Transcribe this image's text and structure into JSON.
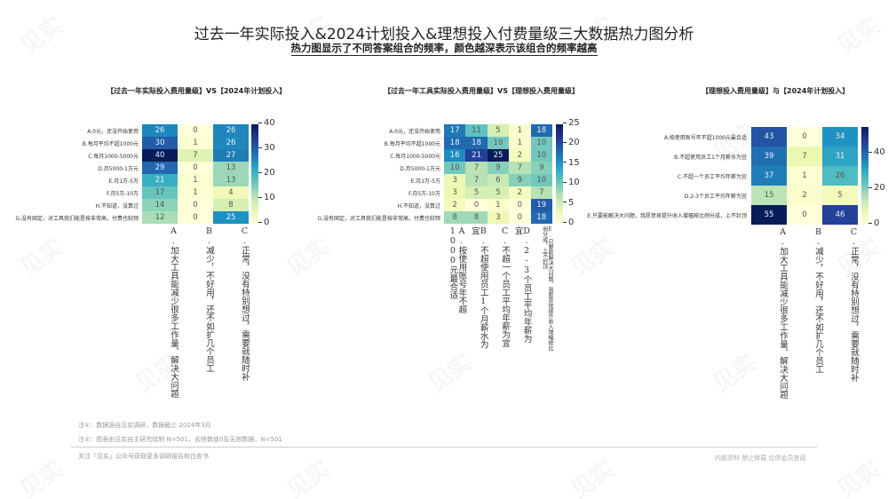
{
  "header": {
    "title": "过去一年实际投入&2024计划投入&理想投入付费量级三大数据热力图分析",
    "subtitle": "热力图显示了不同答案组合的频率，颜色越深表示该组合的频率越高"
  },
  "colors": {
    "colormap": "YlGnBu",
    "low": "#ffffd9",
    "high": "#081d58"
  },
  "chart_data": [
    {
      "type": "heatmap",
      "title": "【过去一年实际投入费用量级】VS【2024年计划投入】",
      "rows": [
        "A.0元，还没开始使用",
        "B.每月平均不超1000元",
        "C.每月1000-5000元",
        "D.月5000-1万元",
        "E.月1万-5万",
        "F.月5万-10万",
        "H.不知道，没算过",
        "G.没有固定，对工具我们能是按非常高，付费也较频"
      ],
      "columns": [
        "A.加大工具能减少很多工作量，解决大问题",
        "B.减少，不好用，还不如扩几个员工",
        "C.正常，没有特别想过，需要就随时补"
      ],
      "values": [
        [
          26,
          0,
          26
        ],
        [
          30,
          1,
          26
        ],
        [
          40,
          7,
          27
        ],
        [
          29,
          0,
          13
        ],
        [
          21,
          1,
          13
        ],
        [
          17,
          1,
          4
        ],
        [
          14,
          0,
          8
        ],
        [
          12,
          0,
          25
        ]
      ],
      "colorbar": {
        "min": 0,
        "max": 40,
        "ticks": [
          0,
          10,
          20,
          30,
          40
        ]
      }
    },
    {
      "type": "heatmap",
      "title": "【过去一年工具实际投入费用量级】VS【理想投入费用量级】",
      "rows": [
        "A.0元，还没开始使用",
        "B.每月平均不超1000元",
        "C.每月1000-5000元",
        "D.月5000-1万元",
        "E.月1万-5万",
        "F.月5万-10万",
        "H.不知道，没算过",
        "G.没有固定，对工具我们能是按非常高，付费也较频"
      ],
      "columns": [
        "A.按使用账号年不超1000元最合适",
        "B.不超使用员工1个月薪水为宜",
        "C.不超一个员工平均年薪为宜",
        "D.2-3个员工平均年薪为宜",
        "E.只要能解决大问题，我愿意按提升收入增幅按比例分成，上不封顶"
      ],
      "values": [
        [
          17,
          11,
          5,
          1,
          18
        ],
        [
          18,
          18,
          10,
          1,
          10
        ],
        [
          16,
          21,
          25,
          2,
          10
        ],
        [
          10,
          7,
          9,
          7,
          9
        ],
        [
          3,
          7,
          6,
          9,
          10
        ],
        [
          3,
          5,
          5,
          2,
          7
        ],
        [
          2,
          0,
          1,
          0,
          19
        ],
        [
          8,
          8,
          3,
          0,
          18
        ]
      ],
      "colorbar": {
        "min": 0,
        "max": 25,
        "ticks": [
          0,
          5,
          10,
          15,
          20,
          25
        ]
      }
    },
    {
      "type": "heatmap",
      "title": "【理想投入费用量级】与【2024年计划投入】",
      "rows": [
        "A.按使用账号年不超1000元最合适",
        "B.不超使用员工1个月薪水为宜",
        "C.不超一个员工平均年薪为宜",
        "D.2-3个员工平均年薪为宜",
        "E.只要能解决大问题，我愿意按提升收入增幅按比例分成，上不封顶"
      ],
      "columns": [
        "A.加大工具能减少很多工作量，解决大问题",
        "B.减少，不好用，还不如扩几个员工",
        "C.正常，没有特别想过，需要就随时补"
      ],
      "values": [
        [
          43,
          0,
          34
        ],
        [
          39,
          7,
          31
        ],
        [
          37,
          1,
          26
        ],
        [
          15,
          2,
          5
        ],
        [
          55,
          0,
          46
        ]
      ],
      "colorbar": {
        "min": 0,
        "max": 55,
        "ticks": [
          0,
          20,
          40
        ]
      }
    }
  ],
  "charts_display": {
    "c1": {
      "rows": [
        "A.0元，还没开始使用",
        "B.每月平均不超1000元",
        "C.每月1000-5000元",
        "D.月5000-1万元",
        "E.月1万-5万",
        "F.月5万-10万",
        "H.不知道，没算过",
        "G.没有固定，对工具我们能是按非常高，付费也较频"
      ],
      "cols": [
        "A.加大工具能减少很多工作量、解决大问题",
        "B.减少，不好用，还不如扩几个员工",
        "C.正常，没有特别想过，需要就随时补"
      ]
    },
    "c2": {
      "rows": [
        "A.0元，还没开始使用",
        "B.每月平均不超1000元",
        "C.每月1000-5000元",
        "D.月5000-1万元",
        "E.月1万-5万",
        "F.月5万-10万",
        "H.不知道，没算过",
        "G.没有固定，对工具我们能是按非常高，付费也较频"
      ],
      "cols": [
        "A.按使用账号年不超1000元最合适",
        "B.不超使用员工1个月薪水为宜",
        "C.不超一个员工平均年薪为宜",
        "D.2-3个员工平均年薪为宜",
        "E.只要能解决大问题，我愿意按提升收入增幅按比例分成，上不封顶"
      ]
    },
    "c3": {
      "rows": [
        "A.按使用账号年不超1000元最合适",
        "B.不超使用员工1个月薪水为宜",
        "C.不超一个员工平均年薪为宜",
        "D.2-3个员工平均年薪为宜",
        "E.只要能解决大问题，我愿意按提升收入增幅按比例分成，上不封顶"
      ],
      "cols": [
        "A.加大工具能减少很多工作量、解决大问题",
        "B.减少，不好用，还不如扩几个员工",
        "C.正常，没有特别想过，需要就随时补"
      ]
    }
  },
  "footer": {
    "note1": "注①：数据源自见实调研，数据截止 2024年3月",
    "note2": "注②：图表由见实自主研究绘制 N=501，去除数值0及无效数据，N=501",
    "follow": "关注「见实」公众号获取更多调研报告和白皮书",
    "right": "内部资料 禁止转载 仅供会员查阅"
  },
  "watermark": "见实"
}
